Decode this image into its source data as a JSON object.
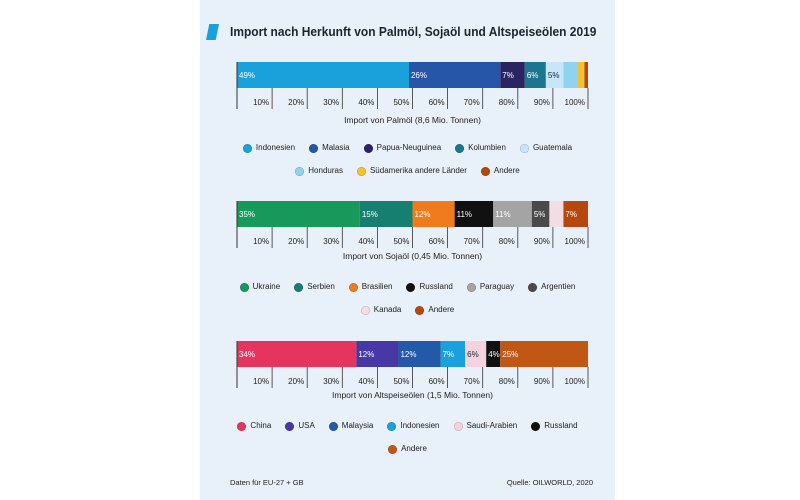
{
  "title": "Import nach Herkunft von Palmöl, Sojaöl und Altspeiseölen 2019",
  "colors": {
    "panel_bg": "#e8f0f9",
    "title_accent": "#1aa0da",
    "text": "#1c2434"
  },
  "chart_data": [
    {
      "type": "bar",
      "orientation": "horizontal",
      "stacked": true,
      "xlabel": "Import von Palmöl (8,6 Mio. Tonnen)",
      "xlim": [
        0,
        100
      ],
      "x_ticks": [
        10,
        20,
        30,
        40,
        50,
        60,
        70,
        80,
        90,
        100
      ],
      "x_tick_labels": [
        "10%",
        "20%",
        "30%",
        "40%",
        "50%",
        "60%",
        "70%",
        "80%",
        "90%",
        "100%"
      ],
      "grid": false,
      "legend_position": "bottom",
      "series": [
        {
          "name": "Indonesien",
          "value": 49,
          "data_label": "49%",
          "color": "#1aa0da"
        },
        {
          "name": "Malasia",
          "value": 26,
          "data_label": "26%",
          "color": "#2556a8"
        },
        {
          "name": "Papua-Neuguinea",
          "value": 7,
          "data_label": "7%",
          "color": "#2b2462"
        },
        {
          "name": "Kolumbien",
          "value": 6,
          "data_label": "6%",
          "color": "#1d7690"
        },
        {
          "name": "Guatemala",
          "value": 5,
          "data_label": "5%",
          "color": "#c7e6f7"
        },
        {
          "name": "Honduras",
          "value": 4,
          "color": "#90d3f0"
        },
        {
          "name": "Südamerika andere Länder",
          "value": 2,
          "color": "#f5c12e"
        },
        {
          "name": "Andere",
          "value": 1,
          "color": "#b4460f"
        }
      ]
    },
    {
      "type": "bar",
      "orientation": "horizontal",
      "stacked": true,
      "xlabel": "Import von Sojaöl (0,45 Mio. Tonnen)",
      "xlim": [
        0,
        100
      ],
      "x_ticks": [
        10,
        20,
        30,
        40,
        50,
        60,
        70,
        80,
        90,
        100
      ],
      "x_tick_labels": [
        "10%",
        "20%",
        "30%",
        "40%",
        "50%",
        "60%",
        "70%",
        "80%",
        "90%",
        "100%"
      ],
      "grid": false,
      "legend_position": "bottom",
      "series": [
        {
          "name": "Ukraine",
          "value": 35,
          "data_label": "35%",
          "color": "#17995b"
        },
        {
          "name": "Serbien",
          "value": 15,
          "data_label": "15%",
          "color": "#167f70"
        },
        {
          "name": "Brasilien",
          "value": 12,
          "data_label": "12%",
          "color": "#f07b1d"
        },
        {
          "name": "Russland",
          "value": 11,
          "data_label": "11%",
          "color": "#111111"
        },
        {
          "name": "Paraguay",
          "value": 11,
          "data_label": "11%",
          "color": "#a4a4a4"
        },
        {
          "name": "Argentien",
          "value": 5,
          "data_label": "5%",
          "color": "#4a4a4a"
        },
        {
          "name": "Kanada",
          "value": 4,
          "color": "#f3dde5"
        },
        {
          "name": "Andere",
          "value": 7,
          "data_label": "7%",
          "color": "#b6480f"
        }
      ]
    },
    {
      "type": "bar",
      "orientation": "horizontal",
      "stacked": true,
      "xlabel": "Import von Altspeiseölen (1,5 Mio. Tonnen)",
      "xlim": [
        0,
        100
      ],
      "x_ticks": [
        10,
        20,
        30,
        40,
        50,
        60,
        70,
        80,
        90,
        100
      ],
      "x_tick_labels": [
        "10%",
        "20%",
        "30%",
        "40%",
        "50%",
        "60%",
        "70%",
        "80%",
        "90%",
        "100%"
      ],
      "grid": false,
      "legend_position": "bottom",
      "series": [
        {
          "name": "China",
          "value": 34,
          "data_label": "34%",
          "color": "#e5345d"
        },
        {
          "name": "USA",
          "value": 12,
          "data_label": "12%",
          "color": "#4838a6"
        },
        {
          "name": "Malaysia",
          "value": 12,
          "data_label": "12%",
          "color": "#2458a8"
        },
        {
          "name": "Indonesien",
          "value": 7,
          "data_label": "7%",
          "color": "#1aa0da"
        },
        {
          "name": "Saudi-Arabien",
          "value": 6,
          "data_label": "6%",
          "color": "#f5d2dd"
        },
        {
          "name": "Russland",
          "value": 4,
          "data_label": "4%",
          "color": "#111111"
        },
        {
          "name": "Andere",
          "value": 25,
          "data_label": "25%",
          "color": "#c05714"
        }
      ]
    }
  ],
  "footer": {
    "note": "Daten für EU-27 + GB",
    "source": "Quelle: OILWORLD, 2020"
  }
}
